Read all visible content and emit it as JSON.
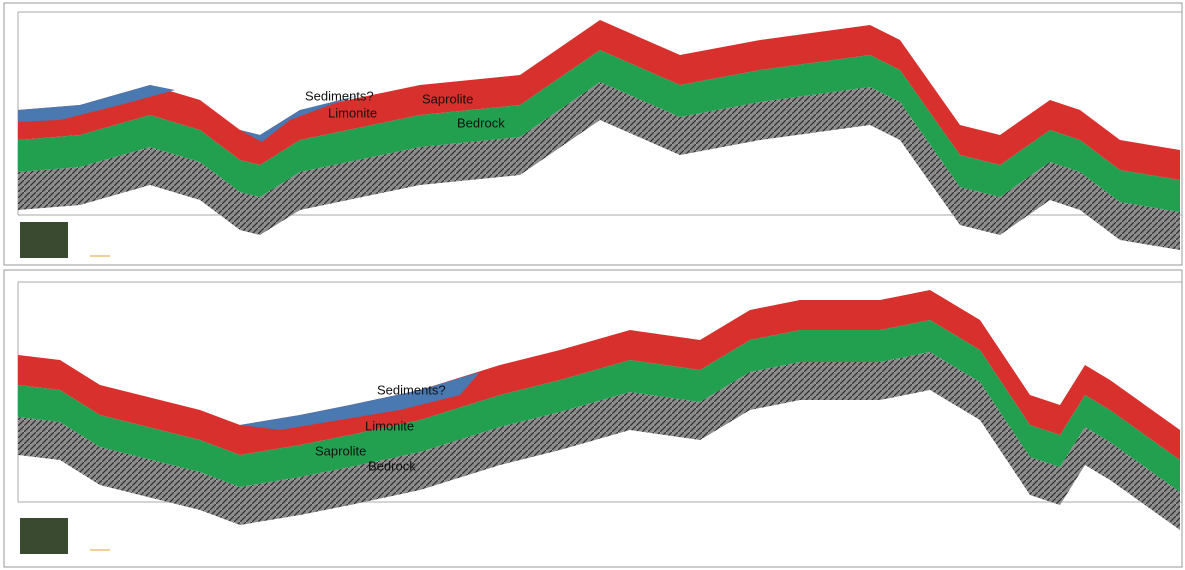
{
  "panels": [
    {
      "labels": {
        "sediments": "Sediments?",
        "limonite": "Limonite",
        "saprolite": "Saprolite",
        "bedrock": "Bedrock"
      }
    },
    {
      "labels": {
        "sediments": "Sediments?",
        "limonite": "Limonite",
        "saprolite": "Saprolite",
        "bedrock": "Bedrock"
      }
    }
  ]
}
